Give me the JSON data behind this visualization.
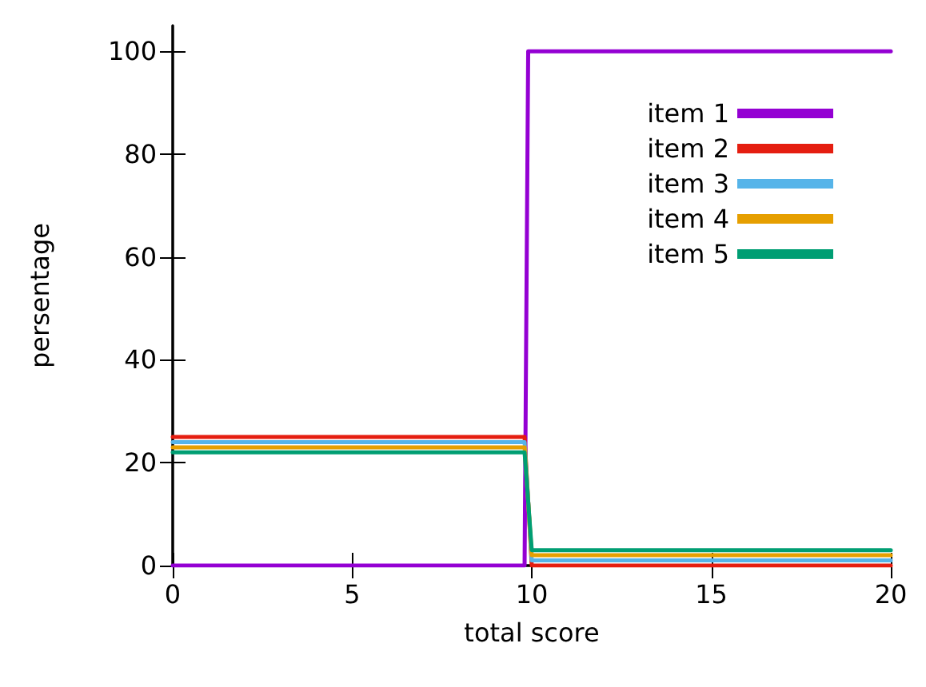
{
  "chart_data": {
    "type": "line",
    "xlabel": "total score",
    "ylabel": "persentage",
    "xlim": [
      0,
      20
    ],
    "xticks": [
      0,
      5,
      10,
      15,
      20
    ],
    "ylim": [
      0,
      105
    ],
    "yticks": [
      0,
      20,
      40,
      60,
      80,
      100
    ],
    "grid": false,
    "legend": "top right",
    "marker": "none",
    "line_style": "solid",
    "series": [
      {
        "name": "item 1",
        "color": "#9400d3",
        "x": [
          0,
          9.8,
          9.9,
          20
        ],
        "values": [
          0,
          0,
          100,
          100
        ]
      },
      {
        "name": "item 2",
        "color": "#e51e10",
        "x": [
          0,
          9.8,
          10,
          20
        ],
        "values": [
          25,
          25,
          0,
          0
        ]
      },
      {
        "name": "item 3",
        "color": "#56b4e9",
        "x": [
          0,
          9.8,
          10,
          20
        ],
        "values": [
          24,
          24,
          1,
          1
        ]
      },
      {
        "name": "item 4",
        "color": "#e69f00",
        "x": [
          0,
          9.8,
          10,
          20
        ],
        "values": [
          23,
          23,
          2,
          2
        ]
      },
      {
        "name": "item 5",
        "color": "#009e73",
        "x": [
          0,
          9.8,
          10,
          20
        ],
        "values": [
          22,
          22,
          3,
          3
        ]
      }
    ]
  }
}
